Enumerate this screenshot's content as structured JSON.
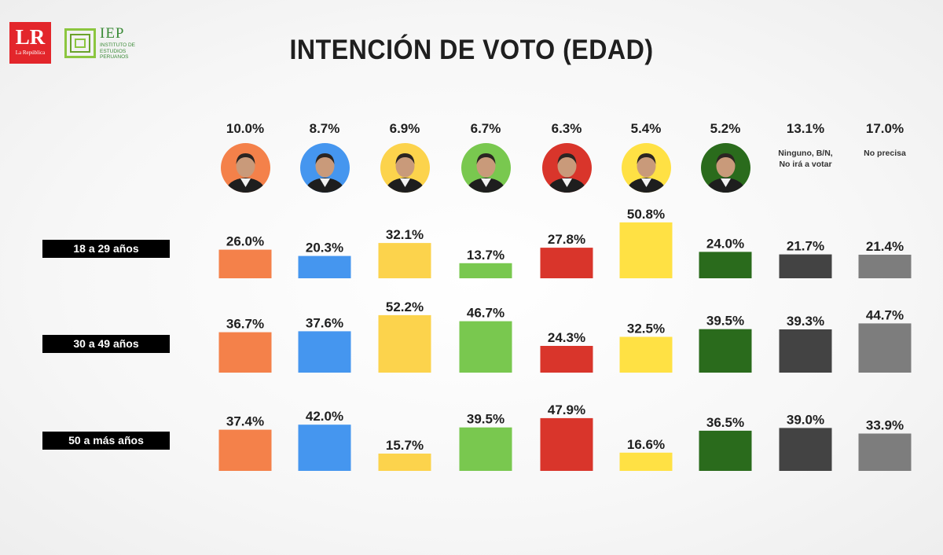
{
  "header": {
    "title": "INTENCIÓN DE VOTO (EDAD)",
    "logo_lr": "LR",
    "logo_lr_sub": "La República",
    "logo_iep": "IEP",
    "logo_iep_sub": "INSTITUTO DE ESTUDIOS PERUANOS"
  },
  "candidates": [
    {
      "pct": "10.0%",
      "color": "#f4814a",
      "kind": "photo",
      "icon": "candidate-photo-1",
      "desc": ""
    },
    {
      "pct": "8.7%",
      "color": "#4596ef",
      "kind": "photo",
      "icon": "candidate-photo-2",
      "desc": ""
    },
    {
      "pct": "6.9%",
      "color": "#fcd34c",
      "kind": "photo",
      "icon": "candidate-photo-3",
      "desc": ""
    },
    {
      "pct": "6.7%",
      "color": "#79c84f",
      "kind": "photo",
      "icon": "candidate-photo-4",
      "desc": ""
    },
    {
      "pct": "6.3%",
      "color": "#d9352b",
      "kind": "photo",
      "icon": "candidate-photo-5",
      "desc": ""
    },
    {
      "pct": "5.4%",
      "color": "#ffe144",
      "kind": "photo",
      "icon": "candidate-photo-6",
      "desc": ""
    },
    {
      "pct": "5.2%",
      "color": "#2a6b1c",
      "kind": "photo",
      "icon": "candidate-photo-7",
      "desc": ""
    },
    {
      "pct": "13.1%",
      "color": "#434343",
      "kind": "text",
      "icon": "",
      "desc": "Ninguno, B/N, No irá a votar"
    },
    {
      "pct": "17.0%",
      "color": "#7d7d7d",
      "kind": "text",
      "icon": "",
      "desc": "No precisa"
    }
  ],
  "chart_data": {
    "type": "bar",
    "title": "INTENCIÓN DE VOTO (EDAD)",
    "categories": [
      "10.0%",
      "8.7%",
      "6.9%",
      "6.7%",
      "6.3%",
      "5.4%",
      "5.2%",
      "Ninguno, B/N, No irá a votar",
      "No precisa"
    ],
    "series": [
      {
        "name": "18 a 29 años",
        "values": [
          26.0,
          20.3,
          32.1,
          13.7,
          27.8,
          50.8,
          24.0,
          21.7,
          21.4
        ]
      },
      {
        "name": "30 a 49 años",
        "values": [
          36.7,
          37.6,
          52.2,
          46.7,
          24.3,
          32.5,
          39.5,
          39.3,
          44.7
        ]
      },
      {
        "name": "50 a más años",
        "values": [
          37.4,
          42.0,
          15.7,
          39.5,
          47.9,
          16.6,
          36.5,
          39.0,
          33.9
        ]
      }
    ],
    "unit": "%",
    "ylim": [
      0,
      55
    ],
    "grid": false,
    "legend": "none"
  }
}
